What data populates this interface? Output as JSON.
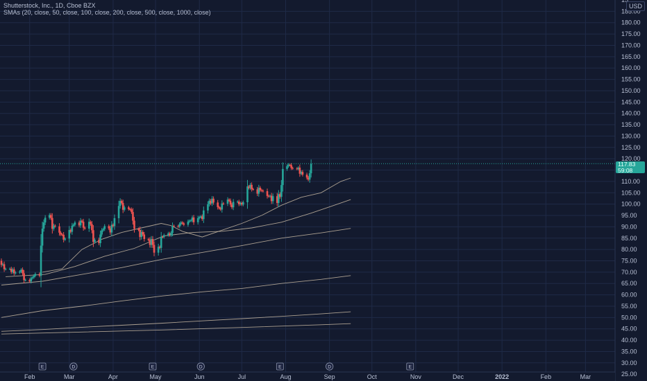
{
  "header": {
    "title": "Shutterstock, Inc., 1D, Cboe BZX",
    "indicator": "SMAs (20, close, 50, close, 100, close, 200, close, 500, close, 1000, close)"
  },
  "currency": "USD",
  "last_price": {
    "value": "117.83",
    "countdown": "59:08"
  },
  "colors": {
    "background": "#131a2e",
    "grid": "#1f2a47",
    "up": "#26a69a",
    "down": "#ef5350",
    "sma": "#c8b9a2",
    "text": "#b8c0d4"
  },
  "chart_data": {
    "type": "candlestick",
    "title": "Shutterstock, Inc., 1D, Cboe BZX",
    "y_axis": {
      "position": "right",
      "range": [
        22,
        190
      ],
      "ticks": [
        25,
        30,
        35,
        40,
        45,
        50,
        55,
        60,
        65,
        70,
        75,
        80,
        85,
        90,
        95,
        100,
        105,
        110,
        115,
        120,
        125,
        130,
        135,
        140,
        145,
        150,
        155,
        160,
        165,
        170,
        175,
        180,
        185
      ],
      "tick_labels": [
        "25.00",
        "30.00",
        "35.00",
        "40.00",
        "45.00",
        "50.00",
        "55.00",
        "60.00",
        "65.00",
        "70.00",
        "75.00",
        "80.00",
        "85.00",
        "90.00",
        "95.00",
        "100.00",
        "105.00",
        "110.00",
        "115.00",
        "120.00",
        "125.00",
        "130.00",
        "135.00",
        "140.00",
        "145.00",
        "150.00",
        "155.00",
        "160.00",
        "165.00",
        "170.00",
        "175.00",
        "180.00",
        "185.00"
      ],
      "top_partial_label": "15"
    },
    "x_axis": {
      "labels": [
        "Feb",
        "Mar",
        "Apr",
        "May",
        "Jun",
        "Jul",
        "Aug",
        "Sep",
        "Oct",
        "Nov",
        "Dec",
        "2022",
        "Feb",
        "Mar"
      ],
      "label_dates": [
        "2021-02-01",
        "2021-03-01",
        "2021-04-01",
        "2021-05-01",
        "2021-06-01",
        "2021-07-01",
        "2021-08-01",
        "2021-09-01",
        "2021-10-01",
        "2021-11-01",
        "2021-12-01",
        "2022-01-01",
        "2022-02-01",
        "2022-03-01"
      ],
      "bold_label": "2022",
      "range": [
        "2021-01-12",
        "2022-03-18"
      ]
    },
    "events": [
      {
        "letter": "E",
        "date": "2021-02-10"
      },
      {
        "letter": "D",
        "date": "2021-03-04"
      },
      {
        "letter": "E",
        "date": "2021-04-29"
      },
      {
        "letter": "D",
        "date": "2021-06-02"
      },
      {
        "letter": "E",
        "date": "2021-07-28"
      },
      {
        "letter": "D",
        "date": "2021-09-01"
      },
      {
        "letter": "E",
        "date": "2021-10-28"
      }
    ],
    "candles": {
      "first_date": "2021-01-12",
      "last_date": "2021-09-16",
      "closes": [
        73.2,
        73.5,
        71.3,
        71.4,
        71.5,
        70.1,
        71.2,
        69.5,
        69.8,
        70.3,
        71.1,
        69.5,
        66.5,
        66.6,
        65.9,
        67.3,
        67.7,
        68.4,
        69.2,
        68.4,
        81.7,
        89.2,
        91.9,
        94.0,
        95.2,
        93.9,
        89.1,
        90.5,
        90.2,
        87.4,
        86.6,
        86.5,
        84.3,
        84.8,
        88.6,
        87.8,
        90.4,
        90.9,
        91.9,
        90.6,
        92.7,
        92.2,
        89.6,
        89.2,
        92.2,
        91.2,
        88.5,
        83.3,
        84.3,
        82.8,
        86.6,
        88.4,
        89.0,
        90.3,
        89.3,
        87.5,
        90.9,
        90.3,
        93.8,
        99.2,
        101.4,
        100.5,
        97.5,
        98.6,
        97.8,
        97.7,
        96.5,
        92.7,
        89.1,
        88.6,
        85.5,
        87.7,
        86.6,
        84.6,
        84.2,
        82.0,
        84.6,
        82.0,
        78.6,
        81.2,
        80.7,
        85.6,
        85.5,
        86.3,
        87.1,
        86.3,
        87.3,
        90.4,
        90.3,
        90.1,
        91.2,
        91.9,
        91.5,
        90.9,
        92.3,
        92.7,
        92.8,
        94.1,
        92.0,
        93.8,
        94.3,
        94.6,
        93.4,
        97.2,
        99.9,
        101.5,
        100.3,
        102.4,
        100.7,
        98.7,
        98.2,
        97.6,
        100.3,
        100.2,
        102.0,
        101.5,
        99.8,
        98.6,
        101.0,
        101.1,
        99.9,
        100.5,
        99.8,
        100.8,
        107.8,
        107.1,
        108.5,
        106.6,
        106.5,
        104.6,
        107.2,
        106.2,
        105.9,
        105.7,
        103.6,
        103.4,
        103.7,
        101.3,
        103.5,
        100.5,
        104.4,
        103.2,
        108.4,
        115.5,
        116.7,
        117.4,
        117.2,
        115.9,
        115.7,
        115.5,
        116.1,
        113.4,
        114.2,
        113.0,
        111.7,
        110.8,
        113.6,
        117.8
      ],
      "opens_note": "open = previous close (first candle open 75.0)"
    },
    "series": [
      {
        "name": "SMA 20",
        "points": [
          [
            "2021-02-10",
            70.0
          ],
          [
            "2021-02-24",
            71.5
          ],
          [
            "2021-03-10",
            80.0
          ],
          [
            "2021-03-24",
            84.5
          ],
          [
            "2021-04-07",
            87.5
          ],
          [
            "2021-04-21",
            89.5
          ],
          [
            "2021-05-05",
            91.5
          ],
          [
            "2021-05-12",
            90.5
          ],
          [
            "2021-05-20",
            88.0
          ],
          [
            "2021-06-03",
            85.5
          ],
          [
            "2021-06-17",
            88.5
          ],
          [
            "2021-07-01",
            91.5
          ],
          [
            "2021-07-15",
            95.0
          ],
          [
            "2021-07-29",
            99.5
          ],
          [
            "2021-08-12",
            103.0
          ],
          [
            "2021-08-26",
            105.0
          ],
          [
            "2021-09-09",
            110.0
          ],
          [
            "2021-09-16",
            111.5
          ]
        ]
      },
      {
        "name": "SMA 50",
        "points": [
          [
            "2021-01-15",
            68.0
          ],
          [
            "2021-02-12",
            69.0
          ],
          [
            "2021-03-05",
            72.5
          ],
          [
            "2021-03-26",
            77.0
          ],
          [
            "2021-04-16",
            80.5
          ],
          [
            "2021-05-07",
            86.0
          ],
          [
            "2021-05-27",
            87.5
          ],
          [
            "2021-06-17",
            88.0
          ],
          [
            "2021-07-08",
            89.5
          ],
          [
            "2021-07-29",
            92.0
          ],
          [
            "2021-08-19",
            96.0
          ],
          [
            "2021-09-02",
            99.0
          ],
          [
            "2021-09-16",
            102.0
          ]
        ]
      },
      {
        "name": "SMA 100",
        "points": [
          [
            "2021-01-12",
            64.3
          ],
          [
            "2021-02-10",
            66.0
          ],
          [
            "2021-03-10",
            69.0
          ],
          [
            "2021-04-07",
            72.0
          ],
          [
            "2021-05-06",
            75.7
          ],
          [
            "2021-06-03",
            78.7
          ],
          [
            "2021-07-01",
            81.7
          ],
          [
            "2021-07-29",
            85.0
          ],
          [
            "2021-08-26",
            87.3
          ],
          [
            "2021-09-16",
            89.3
          ]
        ]
      },
      {
        "name": "SMA 200",
        "points": [
          [
            "2021-01-12",
            50.0
          ],
          [
            "2021-02-10",
            53.0
          ],
          [
            "2021-03-10",
            55.0
          ],
          [
            "2021-04-07",
            57.3
          ],
          [
            "2021-05-06",
            59.5
          ],
          [
            "2021-06-03",
            61.3
          ],
          [
            "2021-07-01",
            62.8
          ],
          [
            "2021-07-29",
            65.0
          ],
          [
            "2021-08-26",
            66.8
          ],
          [
            "2021-09-16",
            68.5
          ]
        ]
      },
      {
        "name": "SMA 500",
        "points": [
          [
            "2021-01-12",
            43.9
          ],
          [
            "2021-02-10",
            44.7
          ],
          [
            "2021-03-10",
            45.7
          ],
          [
            "2021-04-07",
            46.6
          ],
          [
            "2021-05-06",
            47.5
          ],
          [
            "2021-06-03",
            48.5
          ],
          [
            "2021-07-01",
            49.5
          ],
          [
            "2021-07-29",
            50.5
          ],
          [
            "2021-08-26",
            51.6
          ],
          [
            "2021-09-16",
            52.5
          ]
        ]
      },
      {
        "name": "SMA 1000",
        "points": [
          [
            "2021-01-12",
            42.7
          ],
          [
            "2021-03-10",
            43.6
          ],
          [
            "2021-05-06",
            44.5
          ],
          [
            "2021-07-01",
            45.6
          ],
          [
            "2021-08-26",
            46.8
          ],
          [
            "2021-09-16",
            47.3
          ]
        ]
      }
    ]
  }
}
